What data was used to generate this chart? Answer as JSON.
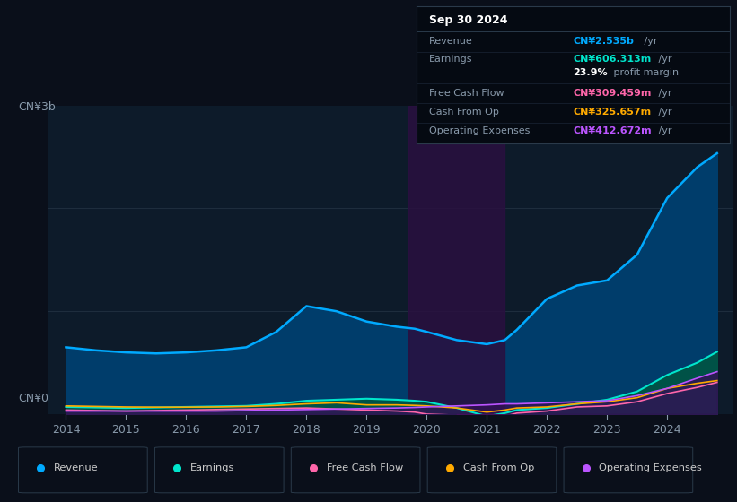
{
  "bg_color": "#0a0f1a",
  "plot_bg_color": "#0d1b2a",
  "grid_color": "#1e2d3d",
  "title_box": {
    "date": "Sep 30 2024",
    "rows": [
      {
        "label": "Revenue",
        "value": "CN¥2.535b",
        "unit": " /yr",
        "value_color": "#00aaff"
      },
      {
        "label": "Earnings",
        "value": "CN¥606.313m",
        "unit": " /yr",
        "value_color": "#00e5cc"
      },
      {
        "label": "",
        "value": "23.9%",
        "unit": " profit margin",
        "value_color": "#ffffff"
      },
      {
        "label": "Free Cash Flow",
        "value": "CN¥309.459m",
        "unit": " /yr",
        "value_color": "#ff66aa"
      },
      {
        "label": "Cash From Op",
        "value": "CN¥325.657m",
        "unit": " /yr",
        "value_color": "#ffaa00"
      },
      {
        "label": "Operating Expenses",
        "value": "CN¥412.672m",
        "unit": " /yr",
        "value_color": "#bb55ff"
      }
    ]
  },
  "ylabel_top": "CN¥3b",
  "ylabel_bottom": "CN¥0",
  "x_years": [
    2014.0,
    2014.5,
    2015.0,
    2015.5,
    2016.0,
    2016.5,
    2017.0,
    2017.5,
    2018.0,
    2018.5,
    2019.0,
    2019.5,
    2019.8,
    2020.0,
    2020.5,
    2021.0,
    2021.3,
    2021.5,
    2022.0,
    2022.5,
    2023.0,
    2023.5,
    2024.0,
    2024.5,
    2024.83
  ],
  "revenue": [
    0.65,
    0.62,
    0.6,
    0.59,
    0.6,
    0.62,
    0.65,
    0.8,
    1.05,
    1.0,
    0.9,
    0.85,
    0.83,
    0.8,
    0.72,
    0.68,
    0.72,
    0.82,
    1.12,
    1.25,
    1.3,
    1.55,
    2.1,
    2.4,
    2.535
  ],
  "earnings": [
    0.07,
    0.065,
    0.06,
    0.065,
    0.07,
    0.075,
    0.08,
    0.1,
    0.13,
    0.14,
    0.15,
    0.14,
    0.13,
    0.12,
    0.06,
    -0.02,
    0.01,
    0.04,
    0.06,
    0.1,
    0.14,
    0.22,
    0.38,
    0.5,
    0.606
  ],
  "free_cash_flow": [
    0.04,
    0.035,
    0.03,
    0.035,
    0.04,
    0.045,
    0.05,
    0.055,
    0.06,
    0.05,
    0.04,
    0.03,
    0.02,
    0.0,
    -0.01,
    -0.03,
    -0.02,
    0.01,
    0.03,
    0.07,
    0.08,
    0.12,
    0.2,
    0.26,
    0.309
  ],
  "cash_from_op": [
    0.08,
    0.075,
    0.07,
    0.068,
    0.068,
    0.07,
    0.075,
    0.085,
    0.1,
    0.11,
    0.09,
    0.09,
    0.085,
    0.08,
    0.06,
    0.02,
    0.04,
    0.06,
    0.07,
    0.1,
    0.12,
    0.16,
    0.25,
    0.3,
    0.326
  ],
  "operating_expenses": [
    0.03,
    0.03,
    0.03,
    0.03,
    0.03,
    0.03,
    0.035,
    0.04,
    0.045,
    0.05,
    0.055,
    0.06,
    0.065,
    0.07,
    0.08,
    0.09,
    0.1,
    0.1,
    0.11,
    0.12,
    0.13,
    0.18,
    0.25,
    0.35,
    0.413
  ],
  "rev_color": "#00aaff",
  "earn_color": "#00e5cc",
  "fcf_color": "#ff66aa",
  "cop_color": "#ffaa00",
  "opex_color": "#bb55ff",
  "rev_fill": "#003d6b",
  "earn_fill": "#005544",
  "shaded_x1": 2019.7,
  "shaded_x2": 2021.3,
  "legend": [
    {
      "label": "Revenue",
      "color": "#00aaff"
    },
    {
      "label": "Earnings",
      "color": "#00e5cc"
    },
    {
      "label": "Free Cash Flow",
      "color": "#ff66aa"
    },
    {
      "label": "Cash From Op",
      "color": "#ffaa00"
    },
    {
      "label": "Operating Expenses",
      "color": "#bb55ff"
    }
  ],
  "ylim": [
    0.0,
    3.0
  ],
  "xlim": [
    2013.7,
    2025.1
  ]
}
